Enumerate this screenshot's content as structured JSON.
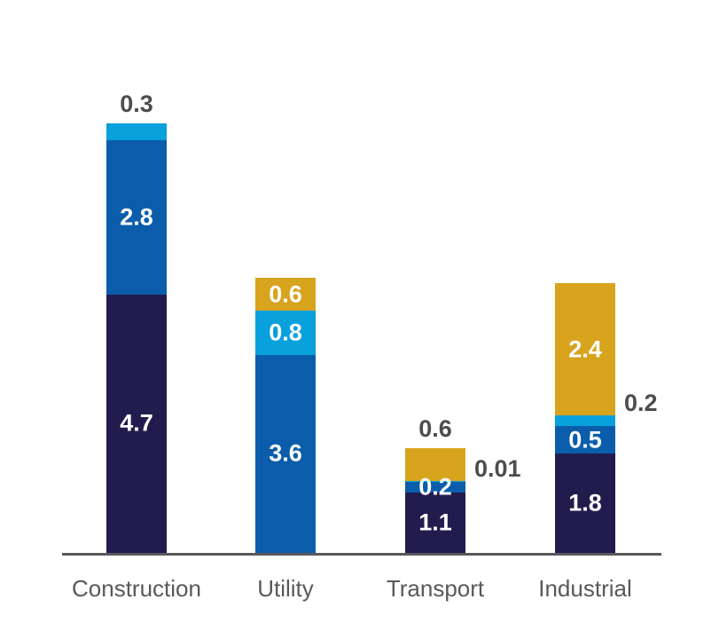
{
  "chart": {
    "background_color": "#ffffff",
    "axis_color": "#58595b",
    "category_label_color": "#58595b",
    "outside_label_color": "#4d4d4f",
    "inside_label_color": "#ffffff"
  },
  "chart_data": {
    "type": "bar",
    "stacked": true,
    "orientation": "vertical",
    "title": "",
    "xlabel": "",
    "ylabel": "",
    "grid": false,
    "legend": false,
    "value_axis_range": [
      0,
      7.8
    ],
    "categories": [
      "Construction",
      "Utility",
      "Transport",
      "Industrial"
    ],
    "series": [
      {
        "name": "dark-navy",
        "color": "#221c4e",
        "values": [
          4.7,
          0,
          1.1,
          1.8
        ]
      },
      {
        "name": "medium-blue",
        "color": "#0b5dab",
        "values": [
          2.8,
          3.6,
          0.2,
          0.5
        ]
      },
      {
        "name": "light-blue",
        "color": "#09a1dc",
        "values": [
          0.3,
          0.8,
          0.01,
          0.2
        ]
      },
      {
        "name": "gold",
        "color": "#d8a41e",
        "values": [
          0,
          0.6,
          0.6,
          2.4
        ]
      }
    ],
    "series_colors": {
      "dark-navy": "#221c4e",
      "medium-blue": "#0b5dab",
      "light-blue": "#09a1dc",
      "gold": "#d8a41e"
    },
    "bars": [
      {
        "category": "Construction",
        "segments": [
          {
            "series": "dark-navy",
            "value": 4.7,
            "label": "4.7",
            "label_pos": "inside"
          },
          {
            "series": "medium-blue",
            "value": 2.8,
            "label": "2.8",
            "label_pos": "inside"
          },
          {
            "series": "light-blue",
            "value": 0.3,
            "label": "0.3",
            "label_pos": "above"
          }
        ]
      },
      {
        "category": "Utility",
        "segments": [
          {
            "series": "medium-blue",
            "value": 3.6,
            "label": "3.6",
            "label_pos": "inside"
          },
          {
            "series": "light-blue",
            "value": 0.8,
            "label": "0.8",
            "label_pos": "inside"
          },
          {
            "series": "gold",
            "value": 0.6,
            "label": "0.6",
            "label_pos": "inside"
          }
        ]
      },
      {
        "category": "Transport",
        "segments": [
          {
            "series": "dark-navy",
            "value": 1.1,
            "label": "1.1",
            "label_pos": "inside"
          },
          {
            "series": "medium-blue",
            "value": 0.2,
            "label": "0.2",
            "label_pos": "inside"
          },
          {
            "series": "light-blue",
            "value": 0.01,
            "label": "0.01",
            "label_pos": "right"
          },
          {
            "series": "gold",
            "value": 0.6,
            "label": "0.6",
            "label_pos": "above"
          }
        ]
      },
      {
        "category": "Industrial",
        "segments": [
          {
            "series": "dark-navy",
            "value": 1.8,
            "label": "1.8",
            "label_pos": "inside"
          },
          {
            "series": "medium-blue",
            "value": 0.5,
            "label": "0.5",
            "label_pos": "inside"
          },
          {
            "series": "light-blue",
            "value": 0.2,
            "label": "0.2",
            "label_pos": "right"
          },
          {
            "series": "gold",
            "value": 2.4,
            "label": "2.4",
            "label_pos": "inside"
          }
        ]
      }
    ]
  }
}
